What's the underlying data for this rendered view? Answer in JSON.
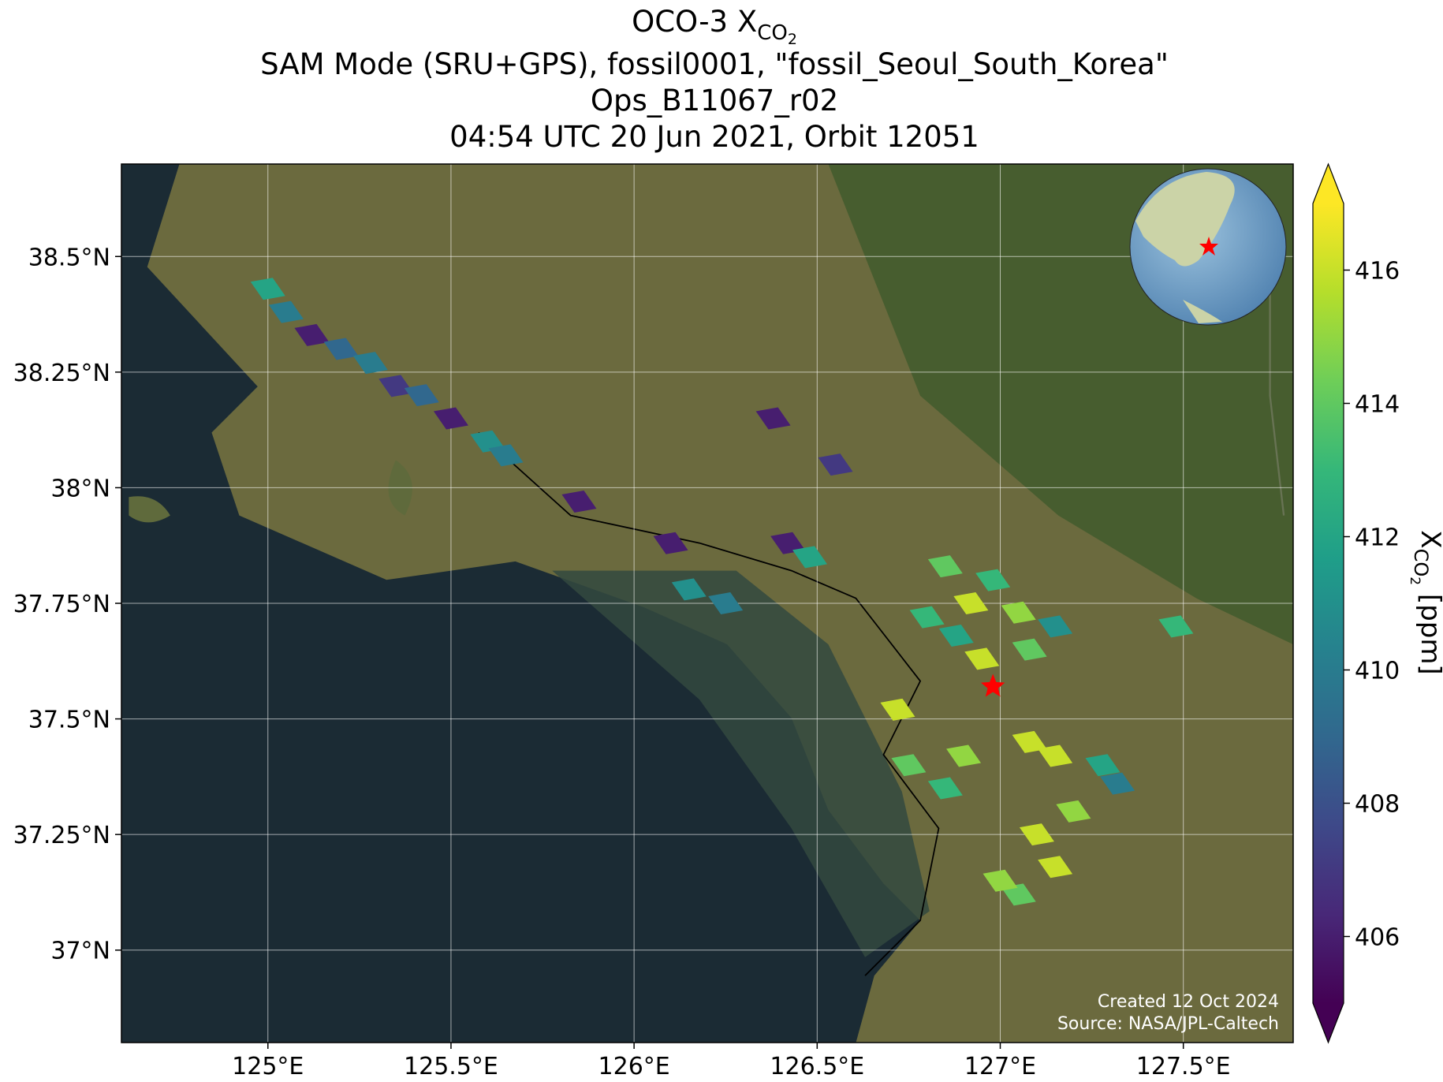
{
  "chart_data": {
    "type": "map",
    "title": {
      "main": "OCO-3 X",
      "sub": "CO",
      "subsub": "2"
    },
    "subtitle_lines": [
      "SAM Mode (SRU+GPS), fossil0001, \"fossil_Seoul_South_Korea\"",
      "Ops_B11067_r02",
      "04:54 UTC 20 Jun 2021, Orbit 12051"
    ],
    "xlim": [
      124.6,
      127.8
    ],
    "ylim": [
      36.8,
      38.7
    ],
    "xticks": [
      {
        "value": 125,
        "label": "125°E"
      },
      {
        "value": 125.5,
        "label": "125.5°E"
      },
      {
        "value": 126,
        "label": "126°E"
      },
      {
        "value": 126.5,
        "label": "126.5°E"
      },
      {
        "value": 127,
        "label": "127°E"
      },
      {
        "value": 127.5,
        "label": "127.5°E"
      }
    ],
    "yticks": [
      {
        "value": 37,
        "label": "37°N"
      },
      {
        "value": 37.25,
        "label": "37.25°N"
      },
      {
        "value": 37.5,
        "label": "37.5°N"
      },
      {
        "value": 37.75,
        "label": "37.75°N"
      },
      {
        "value": 38,
        "label": "38°N"
      },
      {
        "value": 38.25,
        "label": "38.25°N"
      },
      {
        "value": 38.5,
        "label": "38.5°N"
      }
    ],
    "grid": true,
    "colormap": "viridis",
    "clim": [
      405,
      417
    ],
    "cticks": [
      406,
      408,
      410,
      412,
      414,
      416
    ],
    "colorbar_label": {
      "main": "X",
      "sub": "CO",
      "subsub": "2",
      "units": " [ppm]"
    },
    "target": {
      "lon": 126.98,
      "lat": 37.57,
      "color": "#ff0000"
    },
    "soundings": {
      "lon": [
        125.0,
        125.05,
        125.12,
        125.2,
        125.28,
        125.35,
        125.42,
        125.5,
        125.6,
        125.65,
        125.85,
        126.1,
        126.15,
        126.38,
        126.55,
        126.42,
        126.25,
        126.48,
        126.85,
        126.92,
        126.98,
        127.05,
        126.88,
        127.08,
        126.95,
        127.15,
        126.8,
        126.72,
        126.75,
        126.85,
        126.9,
        127.08,
        127.15,
        127.2,
        127.28,
        127.1,
        127.15,
        127.05,
        127.0,
        127.32,
        127.48
      ],
      "lat": [
        38.43,
        38.38,
        38.33,
        38.3,
        38.27,
        38.22,
        38.2,
        38.15,
        38.1,
        38.07,
        37.97,
        37.88,
        37.78,
        38.15,
        38.05,
        37.88,
        37.75,
        37.85,
        37.83,
        37.75,
        37.8,
        37.73,
        37.68,
        37.65,
        37.63,
        37.7,
        37.72,
        37.52,
        37.4,
        37.35,
        37.42,
        37.45,
        37.42,
        37.3,
        37.4,
        37.25,
        37.18,
        37.12,
        37.15,
        37.36,
        37.7
      ],
      "values": [
        412,
        410,
        406,
        409,
        410,
        407,
        409,
        406,
        411,
        410,
        406,
        406,
        411,
        406,
        407,
        406,
        410,
        412,
        414,
        416,
        413,
        415,
        412,
        414,
        416,
        411,
        413,
        416,
        414,
        413,
        415,
        416,
        416,
        415,
        412,
        416,
        416,
        414,
        415,
        410,
        413
      ]
    },
    "footer_lines": [
      "Created 12 Oct 2024",
      "Source: NASA/JPL-Caltech"
    ]
  }
}
